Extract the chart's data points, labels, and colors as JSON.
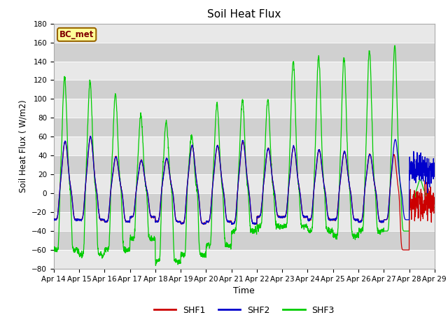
{
  "title": "Soil Heat Flux",
  "xlabel": "Time",
  "ylabel": "Soil Heat Flux ( W/m2)",
  "ylim": [
    -80,
    180
  ],
  "yticks": [
    -80,
    -60,
    -40,
    -20,
    0,
    20,
    40,
    60,
    80,
    100,
    120,
    140,
    160,
    180
  ],
  "date_labels": [
    "Apr 14",
    "Apr 15",
    "Apr 16",
    "Apr 17",
    "Apr 18",
    "Apr 19",
    "Apr 20",
    "Apr 21",
    "Apr 22",
    "Apr 23",
    "Apr 24",
    "Apr 25",
    "Apr 26",
    "Apr 27",
    "Apr 28",
    "Apr 29"
  ],
  "shf1_color": "#cc0000",
  "shf2_color": "#0000cc",
  "shf3_color": "#00cc00",
  "annotation_text": "BC_met",
  "annotation_bg": "#ffff99",
  "annotation_border": "#996600",
  "plot_bg_color": "#d8d8d8",
  "band_light": "#e8e8e8",
  "band_dark": "#d0d0d0",
  "legend_entries": [
    "SHF1",
    "SHF2",
    "SHF3"
  ]
}
